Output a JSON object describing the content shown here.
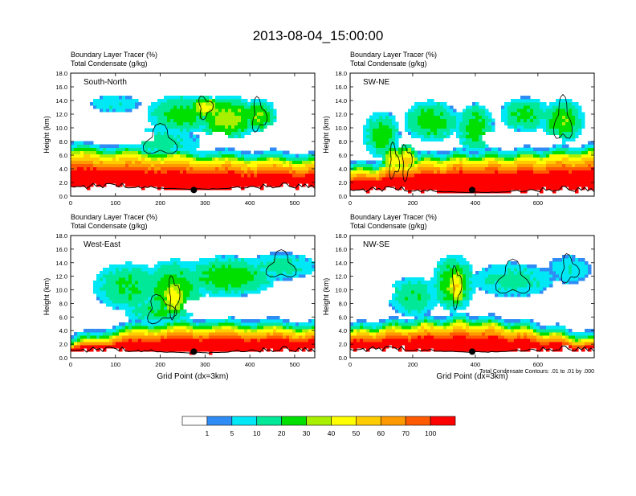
{
  "title": "2013-08-04_15:00:00",
  "palette": {
    "levels": [
      "1",
      "5",
      "10",
      "20",
      "30",
      "40",
      "50",
      "60",
      "70",
      "100"
    ],
    "colors": [
      "#ffffff",
      "#2f8cf5",
      "#00e8f6",
      "#00e898",
      "#00e000",
      "#a8f000",
      "#ffff00",
      "#ffcc00",
      "#ff9900",
      "#ff5a00",
      "#ff0000"
    ],
    "contour_color": "#000000",
    "terrain_color": "#000000"
  },
  "chart_data": [
    {
      "type": "heatmap",
      "panel_label": "South-North",
      "subtitle1": "Boundary Layer Tracer   (%)",
      "subtitle2": "Total Condensate   (g/kg)",
      "ylabel": "Height (km)",
      "xlabel": "",
      "xlim": [
        0,
        545
      ],
      "ylim": [
        0,
        18
      ],
      "xticks": [
        "0",
        "100",
        "200",
        "300",
        "400",
        "500"
      ],
      "yticks": [
        "0.0",
        "2.0",
        "4.0",
        "6.0",
        "8.0",
        "10.0",
        "12.0",
        "14.0",
        "16.0",
        "18.0"
      ],
      "marker_x": 275,
      "note": ""
    },
    {
      "type": "heatmap",
      "panel_label": "SW-NE",
      "subtitle1": "Boundary Layer Tracer   (%)",
      "subtitle2": "Total Condensate   (g/kg)",
      "ylabel": "Height (km)",
      "xlabel": "",
      "xlim": [
        0,
        780
      ],
      "ylim": [
        0,
        18
      ],
      "xticks": [
        "0",
        "200",
        "400",
        "600"
      ],
      "yticks": [
        "0.0",
        "2.0",
        "4.0",
        "6.0",
        "8.0",
        "10.0",
        "12.0",
        "14.0",
        "16.0",
        "18.0"
      ],
      "marker_x": 390,
      "note": ""
    },
    {
      "type": "heatmap",
      "panel_label": "West-East",
      "subtitle1": "Boundary Layer Tracer   (%)",
      "subtitle2": "Total Condensate   (g/kg)",
      "ylabel": "Height (km)",
      "xlabel": "Grid Point (dx=3km)",
      "xlim": [
        0,
        545
      ],
      "ylim": [
        0,
        18
      ],
      "xticks": [
        "0",
        "100",
        "200",
        "300",
        "400",
        "500"
      ],
      "yticks": [
        "0.0",
        "2.0",
        "4.0",
        "6.0",
        "8.0",
        "10.0",
        "12.0",
        "14.0",
        "16.0",
        "18.0"
      ],
      "marker_x": 275,
      "note": ""
    },
    {
      "type": "heatmap",
      "panel_label": "NW-SE",
      "subtitle1": "Boundary Layer Tracer   (%)",
      "subtitle2": "Total Condensate   (g/kg)",
      "ylabel": "Height (km)",
      "xlabel": "Grid Point (dx=3km)",
      "xlim": [
        0,
        780
      ],
      "ylim": [
        0,
        18
      ],
      "xticks": [
        "0",
        "200",
        "400",
        "600"
      ],
      "yticks": [
        "0.0",
        "2.0",
        "4.0",
        "6.0",
        "8.0",
        "10.0",
        "12.0",
        "14.0",
        "16.0",
        "18.0"
      ],
      "marker_x": 390,
      "note": "Total Condensate Contours: .01 to .01 by .000"
    }
  ]
}
